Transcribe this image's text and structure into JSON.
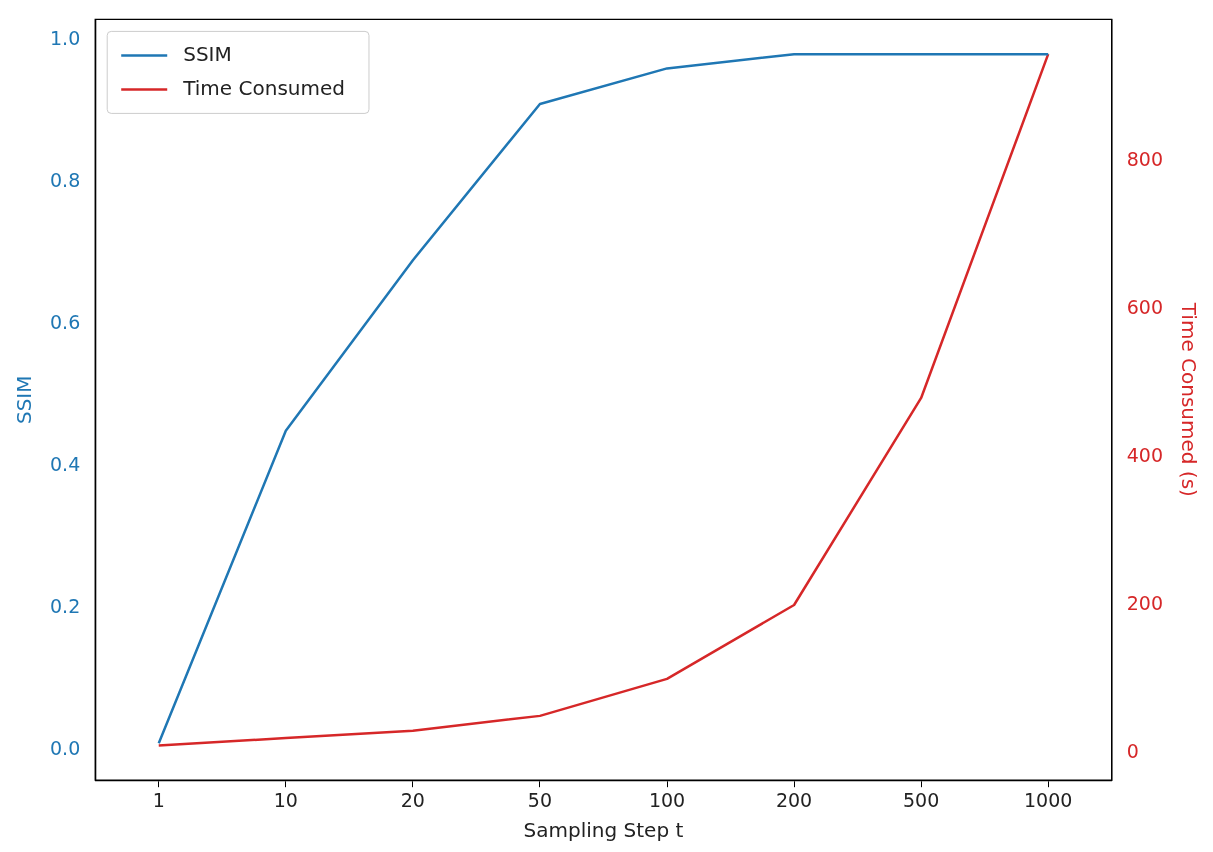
{
  "chart_data": {
    "type": "line",
    "xlabel": "Sampling Step t",
    "ylabel": "SSIM",
    "y2label": "Time Consumed (s)",
    "categories": [
      "1",
      "10",
      "20",
      "50",
      "100",
      "200",
      "500",
      "1000"
    ],
    "series": [
      {
        "name": "SSIM",
        "color": "#1f77b4",
        "values": [
          0.01,
          0.45,
          0.69,
          0.91,
          0.96,
          0.98,
          0.98,
          0.98
        ]
      },
      {
        "name": "Time Consumed",
        "color": "#d62728",
        "axis": "y2",
        "values": [
          10,
          20,
          30,
          50,
          100,
          200,
          480,
          945
        ]
      }
    ],
    "ylim": [
      -0.042,
      1.029
    ],
    "yticks": [
      {
        "value": 0,
        "label": "0.0"
      },
      {
        "value": 0.2,
        "label": "0.2"
      },
      {
        "value": 0.4,
        "label": "0.4"
      },
      {
        "value": 0.6,
        "label": "0.6"
      },
      {
        "value": 0.8,
        "label": "0.8"
      },
      {
        "value": 1,
        "label": "1.0"
      }
    ],
    "y2lim": [
      -37,
      992
    ],
    "y2ticks": [
      0,
      200,
      400,
      600,
      800
    ],
    "legend": "top left",
    "grid": false,
    "marker": "none",
    "line_style": "solid"
  }
}
